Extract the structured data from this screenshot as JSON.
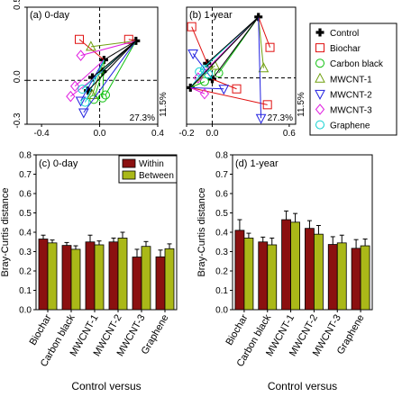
{
  "colors": {
    "within": "#8B1010",
    "between": "#AAB818"
  },
  "chart_data": [
    {
      "type": "scatter",
      "title": "(a) 0-day",
      "xlim": [
        -0.5,
        0.4
      ],
      "ylim": [
        -0.3,
        0.5
      ],
      "xticks": [
        "-0.4",
        "0.0",
        "0.4"
      ],
      "yticks": [
        "-0.3",
        "0.0",
        "0.5"
      ],
      "xticks_v": [
        -0.4,
        0,
        0.4
      ],
      "yticks_v": [
        -0.3,
        0,
        0.5
      ],
      "pc1": "27.3%",
      "pc2": "11.5%",
      "groups": [
        {
          "name": "Control",
          "marker": "plus",
          "color": "#000000",
          "points": [
            [
              0.25,
              0.27
            ],
            [
              0.03,
              0.14
            ],
            [
              0.02,
              0.06
            ],
            [
              -0.05,
              0.02
            ],
            [
              -0.08,
              -0.07
            ]
          ]
        },
        {
          "name": "Biochar",
          "marker": "square",
          "color": "#E01010",
          "points": [
            [
              0.2,
              0.28
            ],
            [
              -0.14,
              0.28
            ]
          ]
        },
        {
          "name": "Carbon black",
          "marker": "circle",
          "color": "#10C010",
          "points": [
            [
              0.04,
              -0.1
            ],
            [
              0.02,
              -0.12
            ],
            [
              -0.04,
              -0.13
            ]
          ]
        },
        {
          "name": "MWCNT-1",
          "marker": "triangle",
          "color": "#70A010",
          "points": [
            [
              -0.06,
              0.23
            ],
            [
              -0.05,
              -0.1
            ]
          ]
        },
        {
          "name": "MWCNT-2",
          "marker": "invtriangle",
          "color": "#2020E0",
          "points": [
            [
              -0.11,
              -0.22
            ],
            [
              -0.13,
              -0.14
            ]
          ]
        },
        {
          "name": "MWCNT-3",
          "marker": "diamond",
          "color": "#E020E0",
          "points": [
            [
              -0.13,
              0.17
            ],
            [
              -0.17,
              -0.04
            ],
            [
              -0.2,
              -0.11
            ]
          ]
        },
        {
          "name": "Graphene",
          "marker": "circle",
          "color": "#10D0D0",
          "points": [
            [
              -0.12,
              -0.06
            ],
            [
              -0.1,
              -0.15
            ]
          ]
        }
      ]
    },
    {
      "type": "scatter",
      "title": "(b) 1-year",
      "xlim": [
        -0.2,
        0.65
      ],
      "ylim": [
        -0.38,
        0.58
      ],
      "xticks": [
        "-0.2",
        "0.0",
        "0.6"
      ],
      "yticks": [],
      "xticks_v": [
        -0.2,
        0,
        0.6
      ],
      "yticks_v": [],
      "pc1": "27.3%",
      "pc2": "11.5%",
      "groups": [
        {
          "name": "Control",
          "marker": "plus",
          "color": "#000000",
          "points": [
            [
              0.36,
              0.5
            ],
            [
              -0.17,
              -0.08
            ],
            [
              0.0,
              -0.01
            ],
            [
              -0.04,
              0.12
            ]
          ]
        },
        {
          "name": "Biochar",
          "marker": "square",
          "color": "#E01010",
          "points": [
            [
              0.45,
              0.25
            ],
            [
              0.43,
              -0.22
            ],
            [
              0.19,
              -0.09
            ],
            [
              -0.16,
              0.42
            ]
          ]
        },
        {
          "name": "Carbon black",
          "marker": "circle",
          "color": "#10C010",
          "points": [
            [
              0.05,
              0.04
            ],
            [
              -0.06,
              -0.03
            ]
          ]
        },
        {
          "name": "MWCNT-1",
          "marker": "triangle",
          "color": "#70A010",
          "points": [
            [
              0.4,
              0.08
            ],
            [
              0.02,
              0.1
            ]
          ]
        },
        {
          "name": "MWCNT-2",
          "marker": "invtriangle",
          "color": "#2020E0",
          "points": [
            [
              0.38,
              -0.33
            ],
            [
              0.09,
              -0.09
            ],
            [
              -0.15,
              0.2
            ]
          ]
        },
        {
          "name": "MWCNT-3",
          "marker": "diamond",
          "color": "#E020E0",
          "points": [
            [
              -0.11,
              0.0
            ],
            [
              -0.06,
              -0.13
            ]
          ]
        },
        {
          "name": "Graphene",
          "marker": "circle",
          "color": "#10D0D0",
          "points": [
            [
              -0.1,
              0.05
            ],
            [
              -0.06,
              0.07
            ],
            [
              -0.03,
              0.03
            ]
          ]
        }
      ]
    },
    {
      "type": "bar",
      "title": "(c) 0-day",
      "ylabel": "Bray-Curtis distance",
      "xlabel": "Control versus",
      "ylim": [
        0,
        0.8
      ],
      "yticks": [
        "0.0",
        "0.1",
        "0.2",
        "0.3",
        "0.4",
        "0.5",
        "0.6",
        "0.7",
        "0.8"
      ],
      "categories": [
        "Biochar",
        "Carbon black",
        "MWCNT-1",
        "MWCNT-2",
        "MWCNT-3",
        "Graphene"
      ],
      "series": [
        {
          "name": "Within",
          "values": [
            0.365,
            0.332,
            0.35,
            0.35,
            0.272,
            0.273
          ],
          "err": [
            0.02,
            0.015,
            0.035,
            0.02,
            0.04,
            0.035
          ]
        },
        {
          "name": "Between",
          "values": [
            0.345,
            0.312,
            0.335,
            0.37,
            0.327,
            0.315
          ],
          "err": [
            0.015,
            0.018,
            0.02,
            0.03,
            0.025,
            0.025
          ]
        }
      ]
    },
    {
      "type": "bar",
      "title": "(d) 1-year",
      "ylabel": "Bray-Curtis distance",
      "xlabel": "Control versus",
      "ylim": [
        0,
        0.8
      ],
      "yticks": [
        "0.0",
        "0.1",
        "0.2",
        "0.3",
        "0.4",
        "0.5",
        "0.6",
        "0.7",
        "0.8"
      ],
      "categories": [
        "Biochar",
        "Carbon black",
        "MWCNT-1",
        "MWCNT-2",
        "MWCNT-3",
        "Graphene"
      ],
      "series": [
        {
          "name": "Within",
          "values": [
            0.41,
            0.35,
            0.465,
            0.42,
            0.337,
            0.317
          ],
          "err": [
            0.055,
            0.025,
            0.045,
            0.04,
            0.04,
            0.045
          ]
        },
        {
          "name": "Between",
          "values": [
            0.37,
            0.335,
            0.452,
            0.39,
            0.345,
            0.33
          ],
          "err": [
            0.025,
            0.035,
            0.045,
            0.045,
            0.04,
            0.035
          ]
        }
      ]
    }
  ]
}
